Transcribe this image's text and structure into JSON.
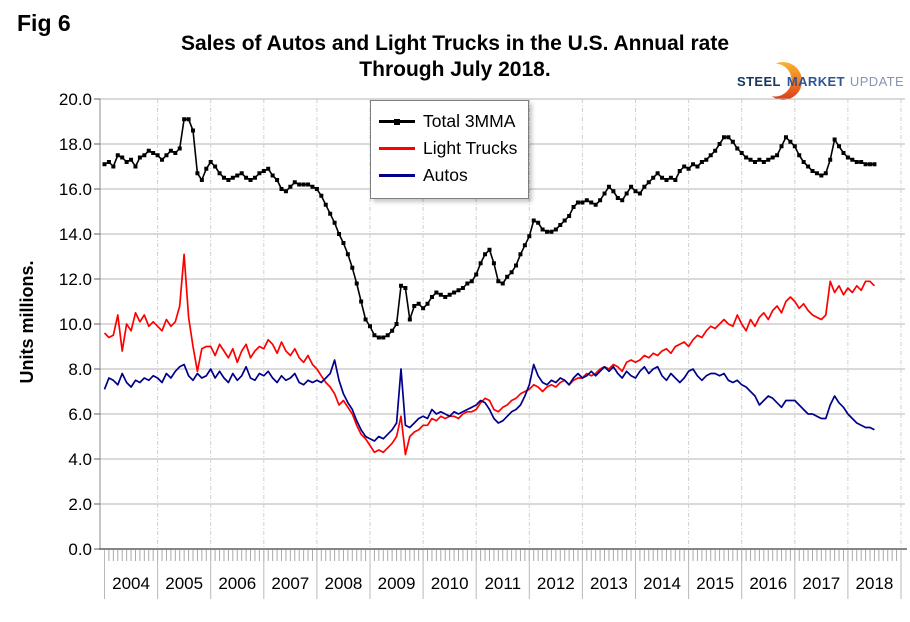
{
  "figure_label": "Fig 6",
  "title": "Sales of Autos and Light Trucks in the U.S. Annual rate",
  "subtitle": "Through July 2018.",
  "logo": {
    "steel": "STEEL",
    "market": "MARKET",
    "update": "UPDATE"
  },
  "y_axis": {
    "label": "Units millions.",
    "ticks": [
      "0.0",
      "2.0",
      "4.0",
      "6.0",
      "8.0",
      "10.0",
      "12.0",
      "14.0",
      "16.0",
      "18.0",
      "20.0"
    ]
  },
  "x_axis": {
    "years": [
      "2004",
      "2005",
      "2006",
      "2007",
      "2008",
      "2009",
      "2010",
      "2011",
      "2012",
      "2013",
      "2014",
      "2015",
      "2016",
      "2017",
      "2018"
    ],
    "minor_ticks": "monthly"
  },
  "legend": {
    "items": [
      {
        "label": "Total 3MMA",
        "color": "#000000",
        "marker": "square"
      },
      {
        "label": "Light Trucks",
        "color": "#ff0000",
        "marker": "none"
      },
      {
        "label": "Autos",
        "color": "#00008b",
        "marker": "none"
      }
    ]
  },
  "chart_data": {
    "type": "line",
    "title": "Sales of Autos and Light Trucks in the U.S. Annual rate Through July 2018.",
    "xlabel": "",
    "ylabel": "Units millions.",
    "ylim": [
      0,
      20
    ],
    "y_tick_step": 2,
    "grid": true,
    "legend_position": "top-center-inside",
    "x_start": "2004-01",
    "x_end": "2018-07",
    "x_frequency": "monthly",
    "series": [
      {
        "name": "Total 3MMA",
        "color": "#000000",
        "marker": "square",
        "values": [
          17.1,
          17.2,
          17.0,
          17.5,
          17.4,
          17.2,
          17.3,
          17.0,
          17.4,
          17.5,
          17.7,
          17.6,
          17.5,
          17.3,
          17.5,
          17.7,
          17.6,
          17.8,
          19.1,
          19.1,
          18.6,
          16.7,
          16.4,
          16.9,
          17.2,
          17.0,
          16.7,
          16.5,
          16.4,
          16.5,
          16.6,
          16.7,
          16.5,
          16.4,
          16.5,
          16.7,
          16.8,
          16.9,
          16.6,
          16.4,
          16.0,
          15.9,
          16.1,
          16.3,
          16.2,
          16.2,
          16.2,
          16.1,
          16.0,
          15.7,
          15.3,
          14.9,
          14.5,
          14.0,
          13.6,
          13.1,
          12.5,
          11.8,
          11.0,
          10.2,
          9.9,
          9.5,
          9.4,
          9.4,
          9.5,
          9.7,
          10.0,
          11.7,
          11.6,
          10.2,
          10.8,
          10.9,
          10.7,
          10.9,
          11.2,
          11.4,
          11.3,
          11.2,
          11.3,
          11.4,
          11.5,
          11.6,
          11.8,
          11.9,
          12.2,
          12.7,
          13.1,
          13.3,
          12.7,
          11.9,
          11.8,
          12.1,
          12.3,
          12.6,
          13.1,
          13.5,
          13.9,
          14.6,
          14.5,
          14.2,
          14.1,
          14.1,
          14.2,
          14.4,
          14.6,
          14.8,
          15.2,
          15.4,
          15.4,
          15.5,
          15.4,
          15.3,
          15.5,
          15.8,
          16.1,
          15.9,
          15.6,
          15.5,
          15.8,
          16.1,
          15.9,
          15.8,
          16.1,
          16.3,
          16.5,
          16.7,
          16.5,
          16.4,
          16.5,
          16.4,
          16.8,
          17.0,
          16.9,
          17.1,
          17.0,
          17.2,
          17.3,
          17.5,
          17.7,
          18.0,
          18.3,
          18.3,
          18.1,
          17.8,
          17.6,
          17.4,
          17.3,
          17.2,
          17.3,
          17.2,
          17.3,
          17.4,
          17.5,
          17.9,
          18.3,
          18.1,
          17.9,
          17.5,
          17.2,
          17.0,
          16.8,
          16.7,
          16.6,
          16.7,
          17.3,
          18.2,
          17.9,
          17.6,
          17.4,
          17.3,
          17.2,
          17.2,
          17.1,
          17.1,
          17.1
        ]
      },
      {
        "name": "Light Trucks",
        "color": "#ff0000",
        "marker": "none",
        "values": [
          9.6,
          9.4,
          9.5,
          10.4,
          8.8,
          10.0,
          9.7,
          10.5,
          10.1,
          10.4,
          9.9,
          10.1,
          9.9,
          9.7,
          10.2,
          9.9,
          10.1,
          10.8,
          13.1,
          10.3,
          9.0,
          7.9,
          8.9,
          9.0,
          9.0,
          8.6,
          9.1,
          8.8,
          8.5,
          8.9,
          8.3,
          8.8,
          9.1,
          8.5,
          8.8,
          9.0,
          8.9,
          9.3,
          9.1,
          8.7,
          9.2,
          8.8,
          8.6,
          8.9,
          8.5,
          8.3,
          8.6,
          8.2,
          8.0,
          7.7,
          7.4,
          7.2,
          6.9,
          6.4,
          6.6,
          6.3,
          6.0,
          5.5,
          5.1,
          4.9,
          4.6,
          4.3,
          4.4,
          4.3,
          4.5,
          4.7,
          5.0,
          5.9,
          4.2,
          5.0,
          5.2,
          5.3,
          5.5,
          5.5,
          5.8,
          5.7,
          5.9,
          5.8,
          5.9,
          5.9,
          5.8,
          6.0,
          6.1,
          6.1,
          6.2,
          6.5,
          6.7,
          6.6,
          6.2,
          6.1,
          6.3,
          6.4,
          6.6,
          6.7,
          6.9,
          7.0,
          7.1,
          7.3,
          7.2,
          7.0,
          7.2,
          7.3,
          7.2,
          7.4,
          7.5,
          7.3,
          7.5,
          7.6,
          7.6,
          7.8,
          7.7,
          7.8,
          8.0,
          8.1,
          8.0,
          8.2,
          8.1,
          7.9,
          8.3,
          8.4,
          8.3,
          8.4,
          8.6,
          8.5,
          8.7,
          8.6,
          8.8,
          8.9,
          8.7,
          9.0,
          9.1,
          9.2,
          9.0,
          9.3,
          9.5,
          9.4,
          9.7,
          9.9,
          9.8,
          10.0,
          10.2,
          10.0,
          9.9,
          10.4,
          10.0,
          9.7,
          10.2,
          9.9,
          10.3,
          10.5,
          10.2,
          10.6,
          10.8,
          10.5,
          11.0,
          11.2,
          11.0,
          10.7,
          10.9,
          10.6,
          10.4,
          10.3,
          10.2,
          10.4,
          11.9,
          11.4,
          11.7,
          11.3,
          11.6,
          11.4,
          11.7,
          11.5,
          11.9,
          11.9,
          11.7
        ]
      },
      {
        "name": "Autos",
        "color": "#00008b",
        "marker": "none",
        "values": [
          7.1,
          7.6,
          7.5,
          7.3,
          7.8,
          7.4,
          7.2,
          7.5,
          7.4,
          7.6,
          7.5,
          7.7,
          7.6,
          7.4,
          7.8,
          7.6,
          7.9,
          8.1,
          8.2,
          7.7,
          7.5,
          7.8,
          7.6,
          7.7,
          8.0,
          7.6,
          7.9,
          7.6,
          7.4,
          7.8,
          7.5,
          7.7,
          8.1,
          7.6,
          7.5,
          7.8,
          7.7,
          7.9,
          7.6,
          7.4,
          7.7,
          7.5,
          7.6,
          7.8,
          7.4,
          7.3,
          7.5,
          7.4,
          7.5,
          7.4,
          7.6,
          7.8,
          8.4,
          7.5,
          6.9,
          6.5,
          6.2,
          5.7,
          5.3,
          5.0,
          4.9,
          4.8,
          5.0,
          4.9,
          5.1,
          5.3,
          5.6,
          8.0,
          5.5,
          5.4,
          5.6,
          5.8,
          5.9,
          5.8,
          6.2,
          6.0,
          6.1,
          6.0,
          5.9,
          6.1,
          6.0,
          6.1,
          6.2,
          6.3,
          6.4,
          6.6,
          6.5,
          6.2,
          5.8,
          5.6,
          5.7,
          5.9,
          6.1,
          6.2,
          6.4,
          6.8,
          7.3,
          8.2,
          7.7,
          7.4,
          7.3,
          7.5,
          7.4,
          7.6,
          7.5,
          7.3,
          7.6,
          7.8,
          7.6,
          7.7,
          7.9,
          7.7,
          7.9,
          8.1,
          7.9,
          8.1,
          7.8,
          7.6,
          7.9,
          7.7,
          7.6,
          7.9,
          8.1,
          7.8,
          8.0,
          8.1,
          7.7,
          7.5,
          7.8,
          7.6,
          7.4,
          7.6,
          7.9,
          8.0,
          7.7,
          7.5,
          7.7,
          7.8,
          7.8,
          7.7,
          7.8,
          7.5,
          7.4,
          7.5,
          7.3,
          7.2,
          7.0,
          6.8,
          6.4,
          6.6,
          6.8,
          6.7,
          6.5,
          6.3,
          6.6,
          6.6,
          6.6,
          6.4,
          6.2,
          6.0,
          6.0,
          5.9,
          5.8,
          5.8,
          6.4,
          6.8,
          6.5,
          6.3,
          6.0,
          5.8,
          5.6,
          5.5,
          5.4,
          5.4,
          5.3
        ]
      }
    ]
  }
}
